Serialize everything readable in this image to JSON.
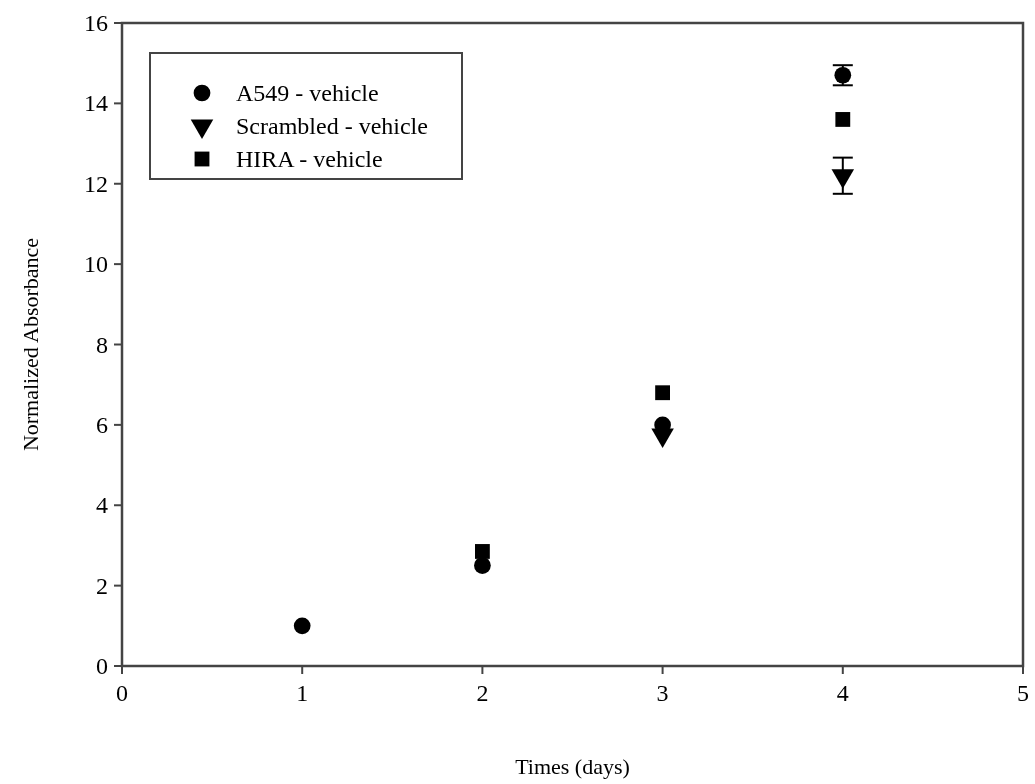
{
  "chart_data": {
    "type": "scatter",
    "xlabel": "Times (days)",
    "ylabel": "Normalized Absorbance",
    "xlim": [
      0,
      5
    ],
    "xticks": [
      0,
      1,
      2,
      3,
      4,
      5
    ],
    "ylim": [
      0,
      16
    ],
    "yticks": [
      0,
      2,
      4,
      6,
      8,
      10,
      12,
      14,
      16
    ],
    "legend": "top left",
    "grid": false,
    "series": [
      {
        "name": "A549 - vehicle",
        "color": "#000000",
        "marker": "circle",
        "x": [
          1,
          2,
          3,
          4
        ],
        "values": [
          1.0,
          2.5,
          6.0,
          14.7
        ],
        "errors": [
          null,
          null,
          null,
          0.25
        ]
      },
      {
        "name": "Scrambled - vehicle",
        "color": "#000000",
        "marker": "triangle",
        "x": [
          3,
          4
        ],
        "values": [
          5.75,
          12.2
        ],
        "errors": [
          null,
          0.45
        ]
      },
      {
        "name": "HIRA - vehicle",
        "color": "#000000",
        "marker": "square",
        "x": [
          2,
          3,
          4
        ],
        "values": [
          2.85,
          6.8,
          13.6
        ]
      }
    ]
  }
}
